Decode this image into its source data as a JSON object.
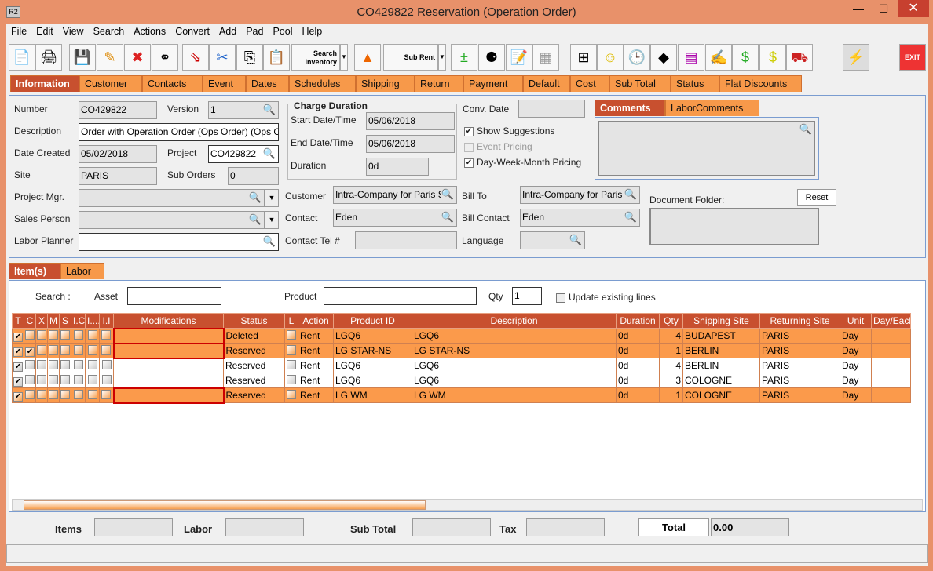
{
  "window": {
    "title": "CO429822 Reservation (Operation Order)",
    "logo": "R2"
  },
  "menu": [
    "File",
    "Edit",
    "View",
    "Search",
    "Actions",
    "Convert",
    "Add",
    "Pad",
    "Pool",
    "Help"
  ],
  "toolbar": {
    "search_inventory": "Search Inventory",
    "sub_rent": "Sub Rent",
    "exit": "EXIT",
    "icons": [
      "new-icon",
      "print-icon",
      "save-icon",
      "edit-icon",
      "delete-icon",
      "binoculars-icon",
      "copy-document-icon",
      "cut-icon",
      "copy-icon",
      "paste-icon"
    ]
  },
  "tabs": [
    "Information",
    "Customer",
    "Contacts",
    "Event",
    "Dates",
    "Schedules",
    "Shipping",
    "Return",
    "Payment",
    "Default",
    "Cost",
    "Sub Total",
    "Status",
    "Flat Discounts"
  ],
  "info": {
    "number_label": "Number",
    "number": "CO429822",
    "version_label": "Version",
    "version": "1",
    "description_label": "Description",
    "description": "Order with Operation Order (Ops Order) (Ops Order)",
    "date_created_label": "Date Created",
    "date_created": "05/02/2018",
    "project_label": "Project",
    "project": "CO429822",
    "site_label": "Site",
    "site": "PARIS",
    "sub_orders_label": "Sub Orders",
    "sub_orders": "0",
    "project_mgr_label": "Project Mgr.",
    "sales_person_label": "Sales Person",
    "labor_planner_label": "Labor Planner",
    "charge_duration": "Charge Duration",
    "start_label": "Start Date/Time",
    "start": "05/06/2018",
    "end_label": "End Date/Time",
    "end": "05/06/2018",
    "duration_label": "Duration",
    "duration": "0d",
    "conv_date_label": "Conv. Date",
    "show_suggestions": "Show Suggestions",
    "event_pricing": "Event Pricing",
    "dwm_pricing": "Day-Week-Month Pricing",
    "customer_label": "Customer",
    "customer": "Intra-Company for Paris Site",
    "contact_label": "Contact",
    "contact": "Eden",
    "contact_tel_label": "Contact Tel #",
    "bill_to_label": "Bill To",
    "bill_to": "Intra-Company for Paris Site",
    "bill_contact_label": "Bill Contact",
    "bill_contact": "Eden",
    "language_label": "Language",
    "comment_tabs": [
      "Comments",
      "LaborComments"
    ],
    "document_folder_label": "Document Folder:",
    "reset": "Reset"
  },
  "item_tabs": [
    "Item(s)",
    "Labor"
  ],
  "search": {
    "search_label": "Search :",
    "asset_label": "Asset",
    "product_label": "Product",
    "qty_label": "Qty",
    "qty": "1",
    "update_existing": "Update existing lines"
  },
  "table": {
    "columns": [
      "T",
      "C",
      "X",
      "M",
      "S",
      "I.C",
      "I....",
      "I.I",
      "Modifications",
      "Status",
      "L",
      "Action",
      "Product ID",
      "Description",
      "Duration",
      "Qty",
      "Shipping Site",
      "Returning Site",
      "Unit",
      "Day/Each"
    ],
    "rows": [
      {
        "hl": true,
        "t": true,
        "c": false,
        "status": "Deleted",
        "action": "Rent",
        "product": "LGQ6",
        "desc": "LGQ6",
        "duration": "0d",
        "qty": "4",
        "ship": "BUDAPEST",
        "ret": "PARIS",
        "unit": "Day",
        "mod": true
      },
      {
        "hl": true,
        "t": true,
        "c": true,
        "status": "Reserved",
        "action": "Rent",
        "product": "LG STAR-NS",
        "desc": "LG STAR-NS",
        "duration": "0d",
        "qty": "1",
        "ship": "BERLIN",
        "ret": "PARIS",
        "unit": "Day",
        "mod": true
      },
      {
        "hl": false,
        "t": true,
        "c": false,
        "status": "Reserved",
        "action": "Rent",
        "product": "LGQ6",
        "desc": "LGQ6",
        "duration": "0d",
        "qty": "4",
        "ship": "BERLIN",
        "ret": "PARIS",
        "unit": "Day",
        "mod": false
      },
      {
        "hl": false,
        "t": true,
        "c": false,
        "status": "Reserved",
        "action": "Rent",
        "product": "LGQ6",
        "desc": "LGQ6",
        "duration": "0d",
        "qty": "3",
        "ship": "COLOGNE",
        "ret": "PARIS",
        "unit": "Day",
        "mod": false
      },
      {
        "hl": true,
        "t": true,
        "c": false,
        "status": "Reserved",
        "action": "Rent",
        "product": "LG WM",
        "desc": "LG WM",
        "duration": "0d",
        "qty": "1",
        "ship": "COLOGNE",
        "ret": "PARIS",
        "unit": "Day",
        "mod": true
      }
    ]
  },
  "footer": {
    "items": "Items",
    "labor": "Labor",
    "sub_total": "Sub Total",
    "tax": "Tax",
    "total": "Total",
    "total_value": "0.00"
  }
}
